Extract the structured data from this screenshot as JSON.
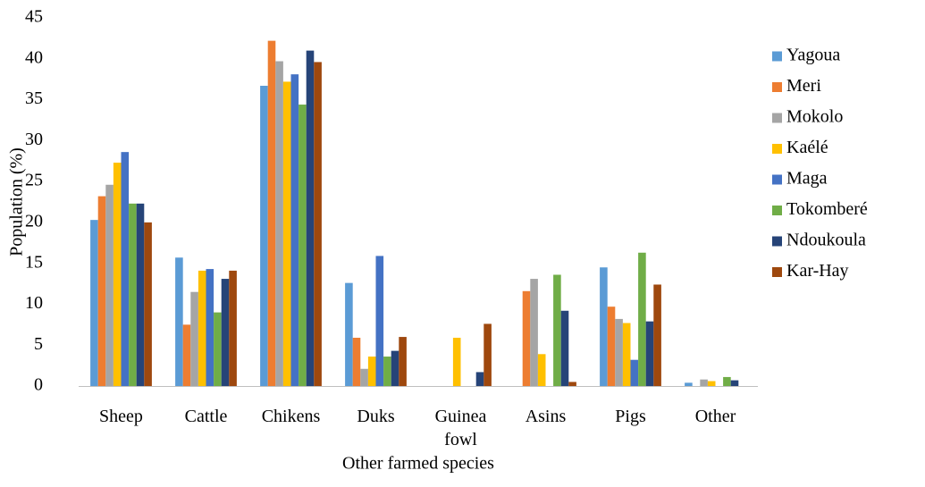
{
  "chart_data": {
    "type": "bar",
    "x_label": "Other farmed species",
    "y_label": "Population (%)",
    "categories": [
      "Sheep",
      "Cattle",
      "Chikens",
      "Duks",
      "Guinea fowl",
      "Asins",
      "Pigs",
      "Other"
    ],
    "series": [
      {
        "name": "Yagoua",
        "color": "#5b9bd5",
        "values": [
          20.3,
          15.7,
          36.7,
          12.6,
          0,
          0,
          14.5,
          0.4
        ]
      },
      {
        "name": "Meri",
        "color": "#ed7d31",
        "values": [
          23.2,
          7.5,
          42.2,
          5.9,
          0,
          11.6,
          9.7,
          0
        ]
      },
      {
        "name": "Mokolo",
        "color": "#a5a5a5",
        "values": [
          24.6,
          11.5,
          39.7,
          2.1,
          0,
          13.1,
          8.2,
          0.8
        ]
      },
      {
        "name": "Kaélé",
        "color": "#ffc000",
        "values": [
          27.3,
          14.1,
          37.2,
          3.6,
          5.9,
          3.9,
          7.7,
          0.6
        ]
      },
      {
        "name": "Maga",
        "color": "#4472c4",
        "values": [
          28.6,
          14.3,
          38.1,
          15.9,
          0,
          0,
          3.2,
          0
        ]
      },
      {
        "name": "Tokomberé",
        "color": "#70ad47",
        "values": [
          22.3,
          9.0,
          34.4,
          3.6,
          0,
          13.6,
          16.3,
          1.1
        ]
      },
      {
        "name": "Ndoukoula",
        "color": "#264478",
        "values": [
          22.3,
          13.1,
          41.0,
          4.3,
          1.7,
          9.2,
          7.9,
          0.7
        ]
      },
      {
        "name": "Kar-Hay",
        "color": "#9e480e",
        "values": [
          20.0,
          14.1,
          39.6,
          6.0,
          7.6,
          0.5,
          12.4,
          0
        ]
      }
    ],
    "ylim": [
      0,
      45
    ],
    "yticks": [
      0,
      5,
      10,
      15,
      20,
      25,
      30,
      35,
      40,
      45
    ],
    "grid": false,
    "legend": "right"
  }
}
